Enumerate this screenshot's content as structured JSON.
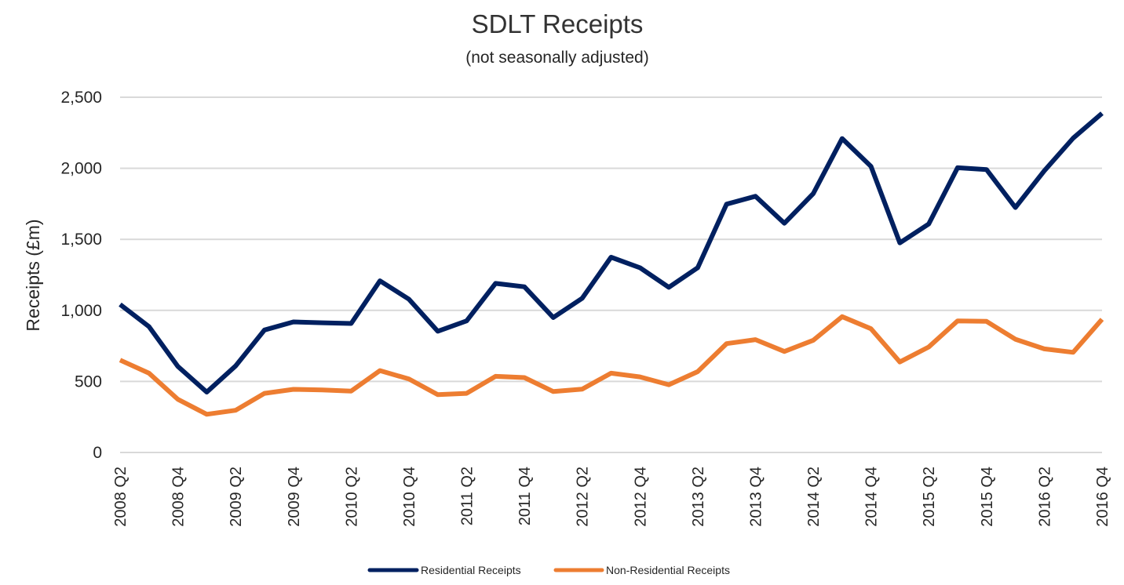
{
  "chart_data": {
    "type": "line",
    "title": "SDLT Receipts",
    "subtitle": "(not seasonally adjusted)",
    "xlabel": "",
    "ylabel": "Receipts (£m)",
    "ylim": [
      0,
      2500
    ],
    "yticks": [
      0,
      500,
      1000,
      1500,
      2000,
      2500
    ],
    "ytick_labels": [
      "0",
      "500",
      "1,000",
      "1,500",
      "2,000",
      "2,500"
    ],
    "grid": true,
    "legend_position": "bottom",
    "x": [
      "2008 Q2",
      "2008 Q3",
      "2008 Q4",
      "2009 Q1",
      "2009 Q2",
      "2009 Q3",
      "2009 Q4",
      "2010 Q1",
      "2010 Q2",
      "2010 Q3",
      "2010 Q4",
      "2011 Q1",
      "2011 Q2",
      "2011 Q3",
      "2011 Q4",
      "2012 Q1",
      "2012 Q2",
      "2012 Q3",
      "2012 Q4",
      "2013 Q1",
      "2013 Q2",
      "2013 Q3",
      "2013 Q4",
      "2014 Q1",
      "2014 Q2",
      "2014 Q3",
      "2014 Q4",
      "2015 Q1",
      "2015 Q2",
      "2015 Q3",
      "2015 Q4",
      "2016 Q1",
      "2016 Q2",
      "2016 Q3",
      "2016 Q4"
    ],
    "xtick_labels": [
      "2008 Q2",
      "2008 Q4",
      "2009 Q2",
      "2009 Q4",
      "2010 Q2",
      "2010 Q4",
      "2011 Q2",
      "2011 Q4",
      "2012 Q2",
      "2012 Q4",
      "2013 Q2",
      "2013 Q4",
      "2014 Q2",
      "2014 Q4",
      "2015 Q2",
      "2015 Q4",
      "2016 Q2",
      "2016 Q4"
    ],
    "series": [
      {
        "name": "Residential Receipts",
        "color": "#002060",
        "values": [
          1042,
          886,
          606,
          425,
          609,
          862,
          919,
          913,
          908,
          1208,
          1079,
          853,
          926,
          1190,
          1166,
          950,
          1085,
          1374,
          1300,
          1162,
          1300,
          1748,
          1803,
          1613,
          1822,
          2209,
          2014,
          1475,
          1608,
          2004,
          1991,
          1724,
          1982,
          2212,
          2387
        ]
      },
      {
        "name": "Non-Residential Receipts",
        "color": "#ED7D31",
        "values": [
          650,
          558,
          374,
          269,
          297,
          416,
          444,
          440,
          432,
          576,
          517,
          407,
          416,
          536,
          527,
          429,
          446,
          558,
          532,
          477,
          569,
          766,
          794,
          711,
          790,
          956,
          871,
          637,
          742,
          926,
          923,
          797,
          729,
          705,
          937
        ]
      }
    ]
  }
}
